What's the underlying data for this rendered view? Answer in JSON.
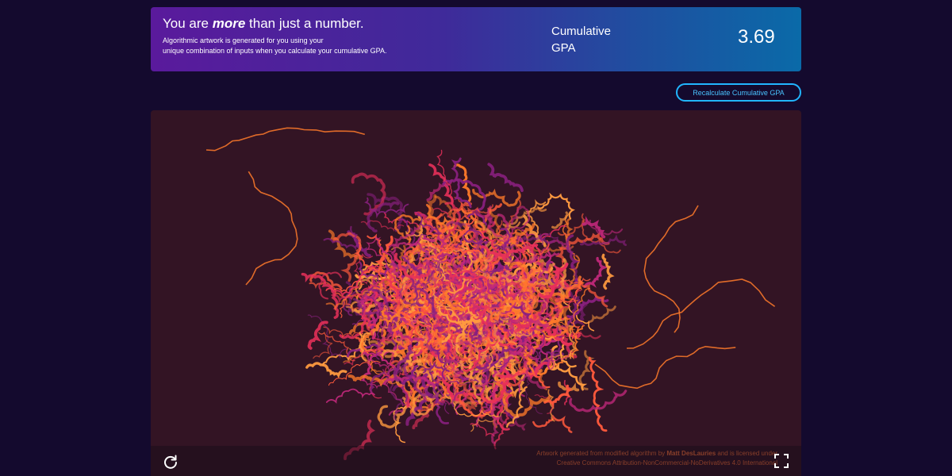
{
  "banner": {
    "headline_pre": "You are ",
    "headline_em": "more",
    "headline_post": " than just a number.",
    "description_line1": "Algorithmic artwork is generated for you using your",
    "description_line2": "unique combination of inputs when you calculate your cumulative GPA.",
    "gpa_label_line1": "Cumulative",
    "gpa_label_line2": "GPA",
    "gpa_value": "3.69"
  },
  "actions": {
    "recalculate_label": "Recalculate Cumulative GPA"
  },
  "artwork": {
    "background_color": "#331424",
    "palette": [
      "#ff7a2a",
      "#ff5a3c",
      "#e8305a",
      "#c0287a",
      "#8a2080",
      "#ff9a40"
    ],
    "credit_pre": "Artwork generated from modified algorithm by ",
    "credit_author": "Matt DesLauries",
    "credit_post": " and is licensed under",
    "credit_line2": "Creative Commons Attribution-NonCommercial-NoDerivatives 4.0 International",
    "reload_icon": "reload-icon",
    "fullscreen_icon": "fullscreen-icon"
  }
}
